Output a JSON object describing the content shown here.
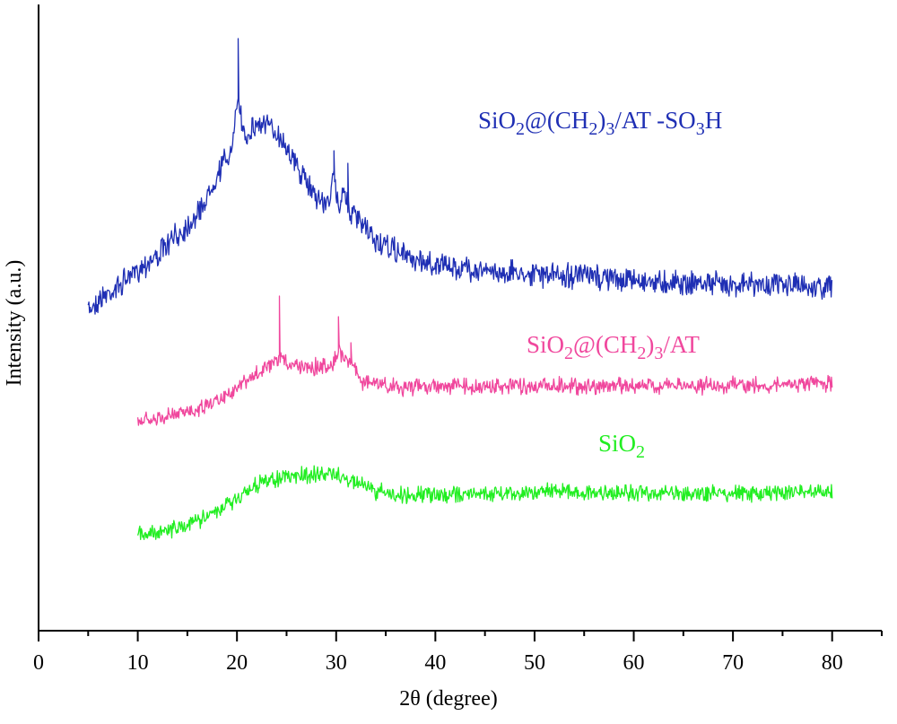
{
  "chart_data": {
    "type": "line",
    "xlabel": "2θ (degree)",
    "ylabel": "Intensity (a.u.)",
    "xlim": [
      0,
      85
    ],
    "xticks": [
      0,
      10,
      20,
      30,
      40,
      50,
      60,
      70,
      80
    ],
    "grid": false,
    "legend": "none",
    "yticks_labeled": false,
    "series": [
      {
        "name": "SiO2@(CH2)3/AT -SO3H",
        "color": "#1f2fb4",
        "labels": [
          {
            "text": "SiO",
            "sub": "2"
          },
          {
            "text": "@(CH"
          },
          {
            "text": "",
            "sub": "2"
          },
          {
            "text": ")"
          },
          {
            "text": "",
            "sub": "3"
          },
          {
            "text": "/AT -SO"
          },
          {
            "text": "",
            "sub": "3"
          },
          {
            "text": "H"
          }
        ],
        "x": [
          5,
          6,
          8,
          10,
          12,
          14,
          16,
          17,
          18,
          19,
          19.6,
          20.1,
          20.5,
          21,
          22,
          23,
          24,
          25,
          26,
          27,
          28,
          29,
          29.8,
          30.3,
          30.7,
          31.2,
          31.8,
          32.5,
          34,
          36,
          38,
          40,
          45,
          50,
          55,
          60,
          65,
          70,
          75,
          80
        ],
        "y": [
          345,
          335,
          320,
          300,
          285,
          262,
          240,
          220,
          195,
          175,
          165,
          105,
          140,
          150,
          138,
          140,
          148,
          163,
          185,
          203,
          218,
          230,
          200,
          235,
          203,
          232,
          240,
          250,
          270,
          280,
          290,
          295,
          302,
          305,
          308,
          312,
          315,
          316,
          318,
          320
        ],
        "spikes": [
          {
            "x": 20.1,
            "y": 43
          },
          {
            "x": 29.8,
            "y": 168
          },
          {
            "x": 31.2,
            "y": 182
          }
        ],
        "noise": 10
      },
      {
        "name": "SiO2@(CH2)3/AT",
        "color": "#f0479d",
        "labels": [
          {
            "text": "SiO",
            "sub": "2"
          },
          {
            "text": "@(CH"
          },
          {
            "text": "",
            "sub": "2"
          },
          {
            "text": ")"
          },
          {
            "text": "",
            "sub": "3"
          },
          {
            "text": "/AT"
          }
        ],
        "x": [
          10,
          12,
          14,
          16,
          18,
          20,
          22,
          23,
          24,
          24.3,
          25,
          27,
          29,
          30,
          30.2,
          31,
          31.7,
          32.5,
          34,
          36,
          40,
          45,
          50,
          60,
          70,
          80
        ],
        "y": [
          470,
          468,
          462,
          455,
          445,
          432,
          418,
          410,
          405,
          398,
          405,
          408,
          410,
          400,
          392,
          400,
          405,
          425,
          428,
          432,
          430,
          432,
          430,
          430,
          430,
          428
        ],
        "spikes": [
          {
            "x": 24.3,
            "y": 330
          },
          {
            "x": 30.2,
            "y": 353
          },
          {
            "x": 31.5,
            "y": 382
          }
        ],
        "noise": 7
      },
      {
        "name": "SiO2",
        "color": "#22ee22",
        "labels": [
          {
            "text": "SiO",
            "sub": "2"
          }
        ],
        "x": [
          10,
          12,
          14,
          16,
          18,
          20,
          22,
          24,
          26,
          28,
          29.5,
          31,
          32,
          34,
          36,
          40,
          45,
          50,
          52,
          55,
          60,
          70,
          80
        ],
        "y": [
          595,
          592,
          588,
          580,
          570,
          555,
          540,
          533,
          530,
          530,
          528,
          533,
          538,
          548,
          552,
          552,
          550,
          548,
          545,
          550,
          550,
          550,
          548
        ],
        "spikes": [],
        "noise": 7
      }
    ]
  }
}
